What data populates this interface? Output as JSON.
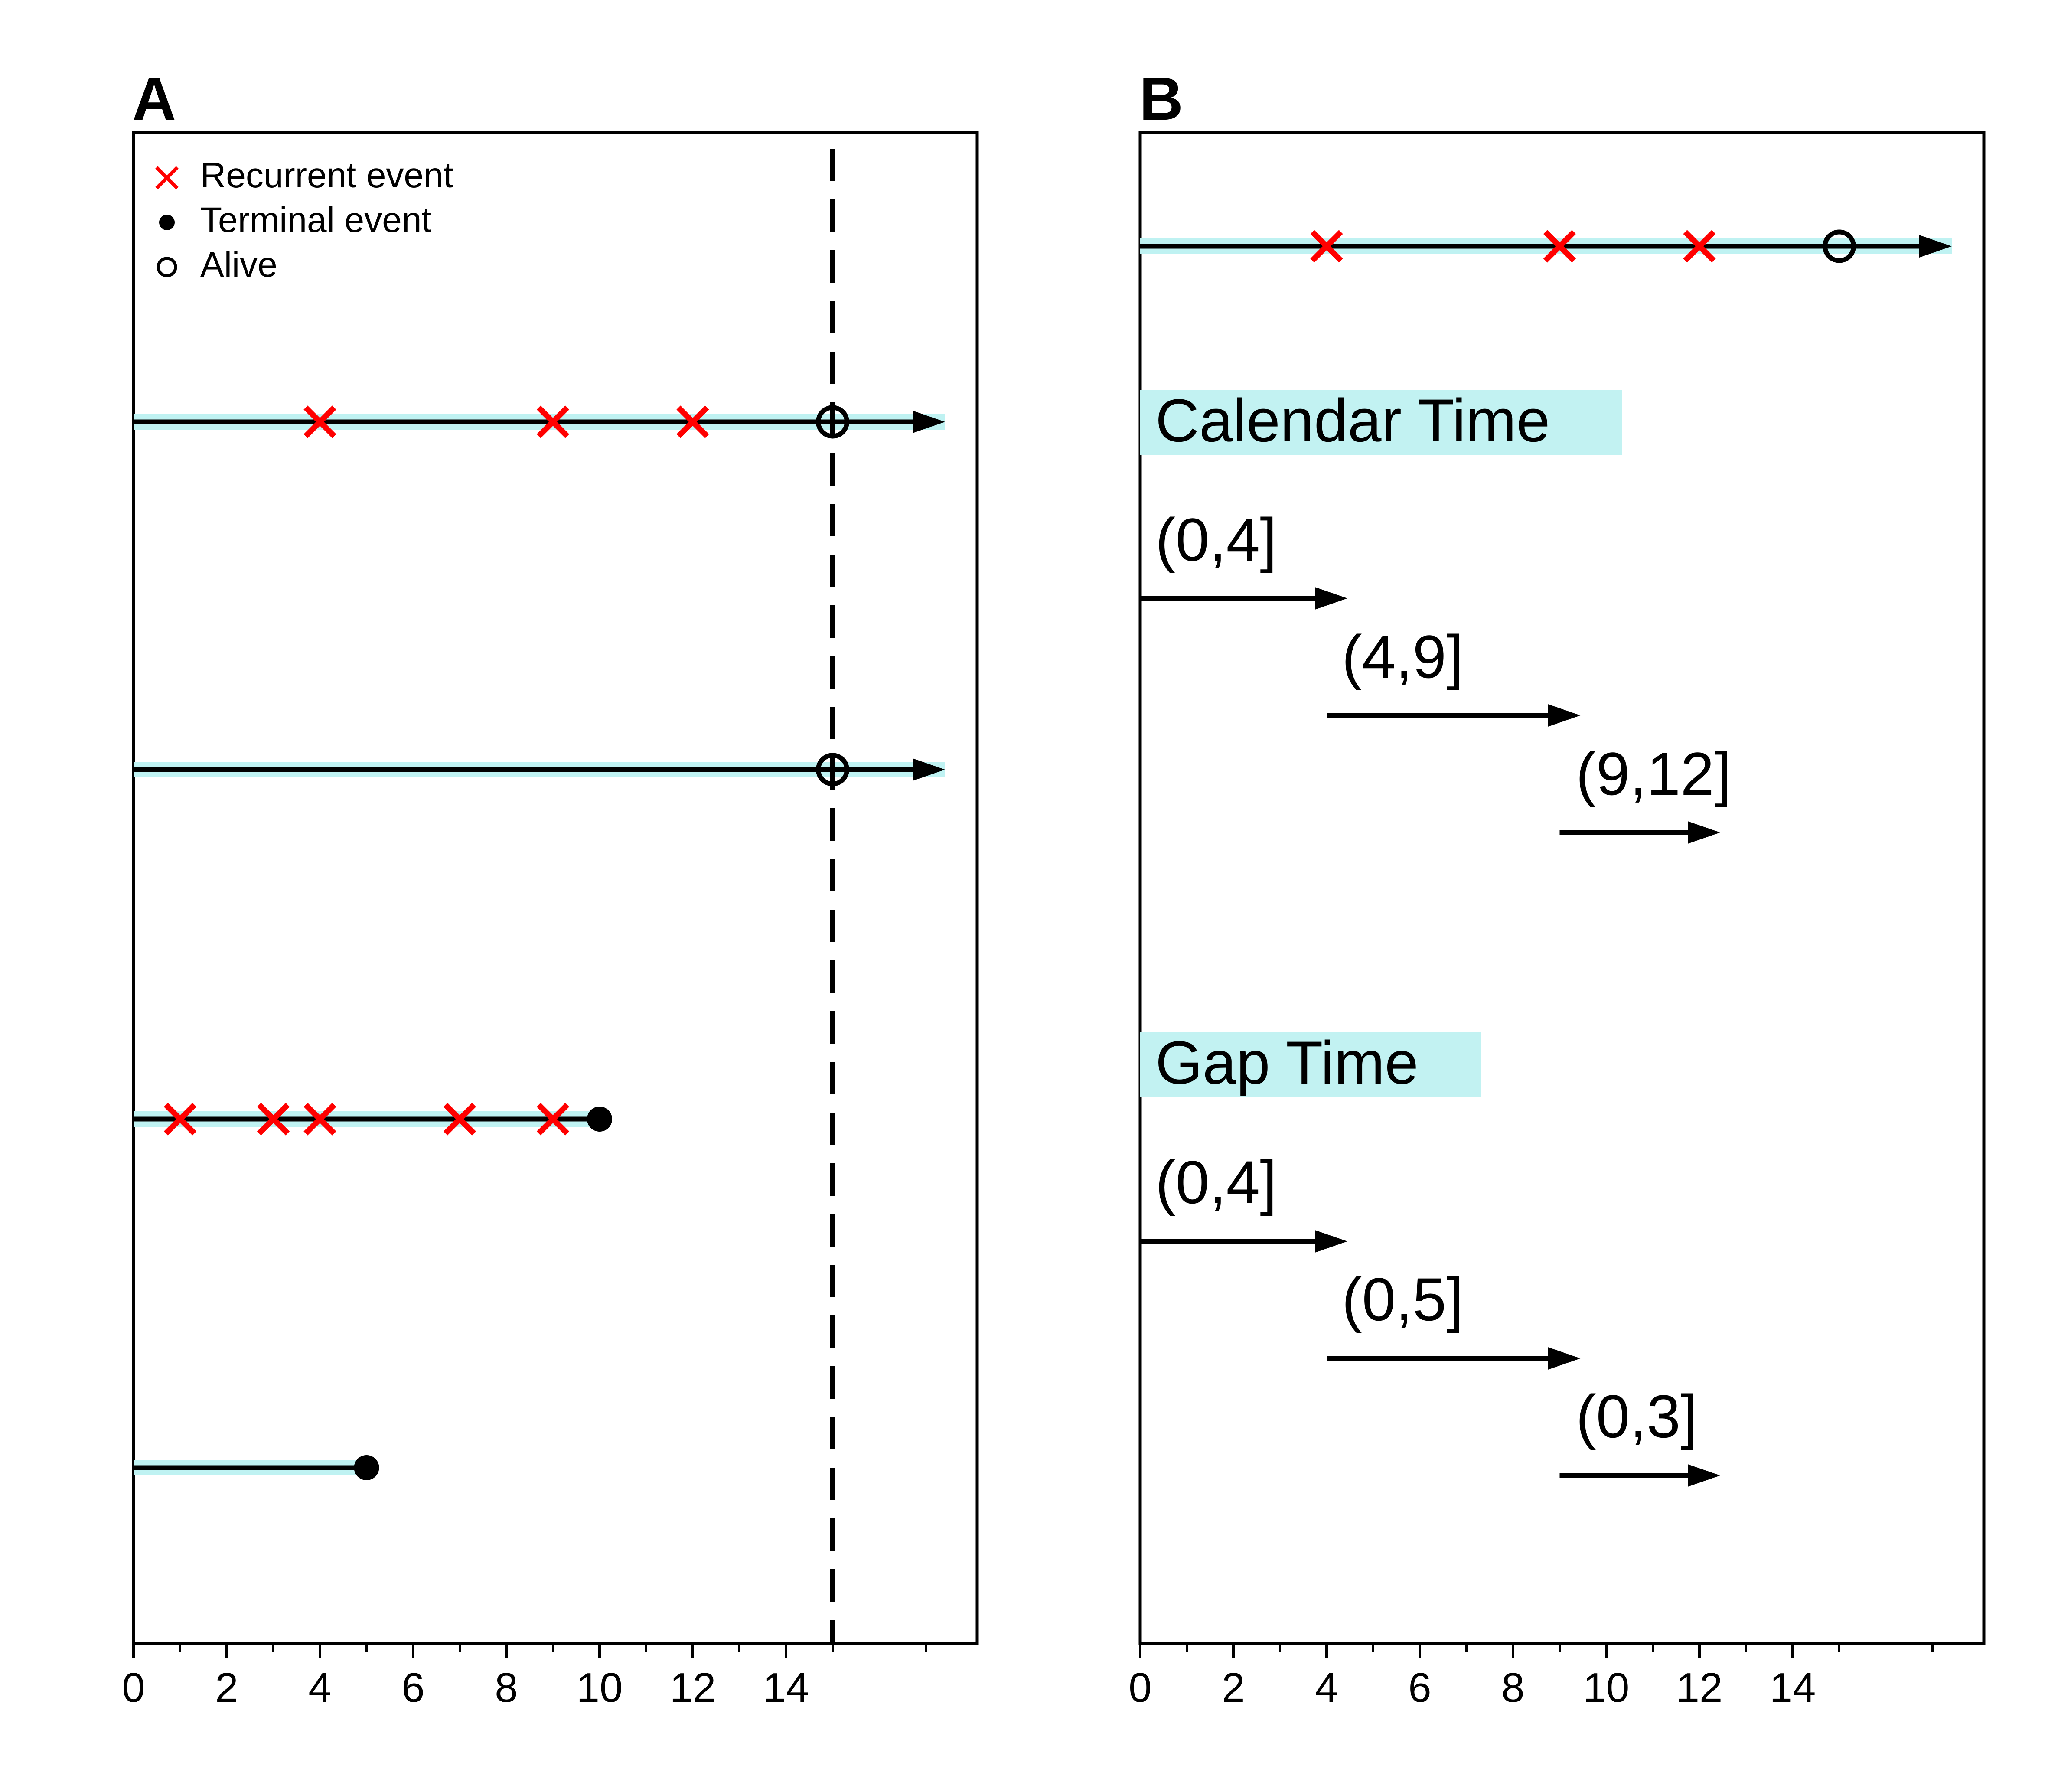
{
  "colors": {
    "recurrent": "#ff0000",
    "line": "#000000",
    "band": "#bff2f2",
    "label_bg": "#c2f2f2",
    "background": "#ffffff"
  },
  "chart_data": [
    {
      "panel": "A",
      "type": "scatter",
      "xlim": [
        0,
        18
      ],
      "x_ticks": [
        0,
        2,
        4,
        6,
        8,
        10,
        12,
        14
      ],
      "minor_ticks": [
        1,
        3,
        5,
        7,
        9,
        11,
        13,
        15,
        17
      ],
      "grid": false,
      "legend_position": "top-left",
      "legend": [
        {
          "marker": "cross",
          "label": "Recurrent event"
        },
        {
          "marker": "dot",
          "label": "Terminal event"
        },
        {
          "marker": "circle",
          "label": "Alive"
        }
      ],
      "reference_line": {
        "x": 15,
        "style": "dashed"
      },
      "subjects": [
        {
          "end": 15,
          "status": "alive",
          "arrow": true,
          "recurrent": [
            4,
            9,
            12
          ]
        },
        {
          "end": 15,
          "status": "alive",
          "arrow": true,
          "recurrent": []
        },
        {
          "end": 10,
          "status": "terminal",
          "arrow": false,
          "recurrent": [
            1,
            3,
            4,
            7,
            9
          ]
        },
        {
          "end": 5,
          "status": "terminal",
          "arrow": false,
          "recurrent": []
        }
      ]
    },
    {
      "panel": "B",
      "type": "scatter",
      "xlim": [
        0,
        18
      ],
      "x_ticks": [
        0,
        2,
        4,
        6,
        8,
        10,
        12,
        14
      ],
      "minor_ticks": [
        1,
        3,
        5,
        7,
        9,
        11,
        13,
        15,
        17
      ],
      "grid": false,
      "subject": {
        "end": 15,
        "status": "alive",
        "arrow": true,
        "recurrent": [
          4,
          9,
          12
        ]
      },
      "sections": [
        {
          "title": "Calendar Time",
          "intervals": [
            {
              "label": "(0,4]",
              "start": 0,
              "stop": 4
            },
            {
              "label": "(4,9]",
              "start": 4,
              "stop": 9
            },
            {
              "label": "(9,12]",
              "start": 9,
              "stop": 12
            }
          ]
        },
        {
          "title": "Gap Time",
          "intervals": [
            {
              "label": "(0,4]",
              "start": 0,
              "stop": 4
            },
            {
              "label": "(0,5]",
              "start": 4,
              "stop": 9
            },
            {
              "label": "(0,3]",
              "start": 9,
              "stop": 12
            }
          ]
        }
      ]
    }
  ]
}
